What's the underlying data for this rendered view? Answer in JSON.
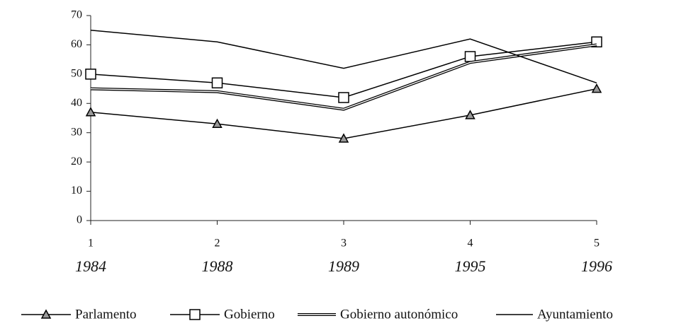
{
  "chart_data": {
    "type": "line",
    "categories": [
      "1",
      "2",
      "3",
      "4",
      "5"
    ],
    "category_years": [
      "1984",
      "1988",
      "1989",
      "1995",
      "1996"
    ],
    "ylim": [
      0,
      70
    ],
    "yticks": [
      0,
      10,
      20,
      30,
      40,
      50,
      60,
      70
    ],
    "series": [
      {
        "name": "Parlamento",
        "color": "#000000",
        "marker": "triangle",
        "line_style": "single",
        "values": [
          37,
          33,
          28,
          36,
          45
        ]
      },
      {
        "name": "Gobierno",
        "color": "#000000",
        "marker": "square",
        "line_style": "single",
        "values": [
          50,
          47,
          42,
          56,
          61
        ]
      },
      {
        "name": "Gobierno autonómico",
        "color": "#000000",
        "marker": "none",
        "line_style": "double",
        "values": [
          45,
          44,
          38,
          54,
          60
        ]
      },
      {
        "name": "Ayuntamiento",
        "color": "#000000",
        "marker": "none",
        "line_style": "single",
        "values": [
          65,
          61,
          52,
          62,
          47
        ]
      }
    ],
    "legend": "bottom"
  }
}
